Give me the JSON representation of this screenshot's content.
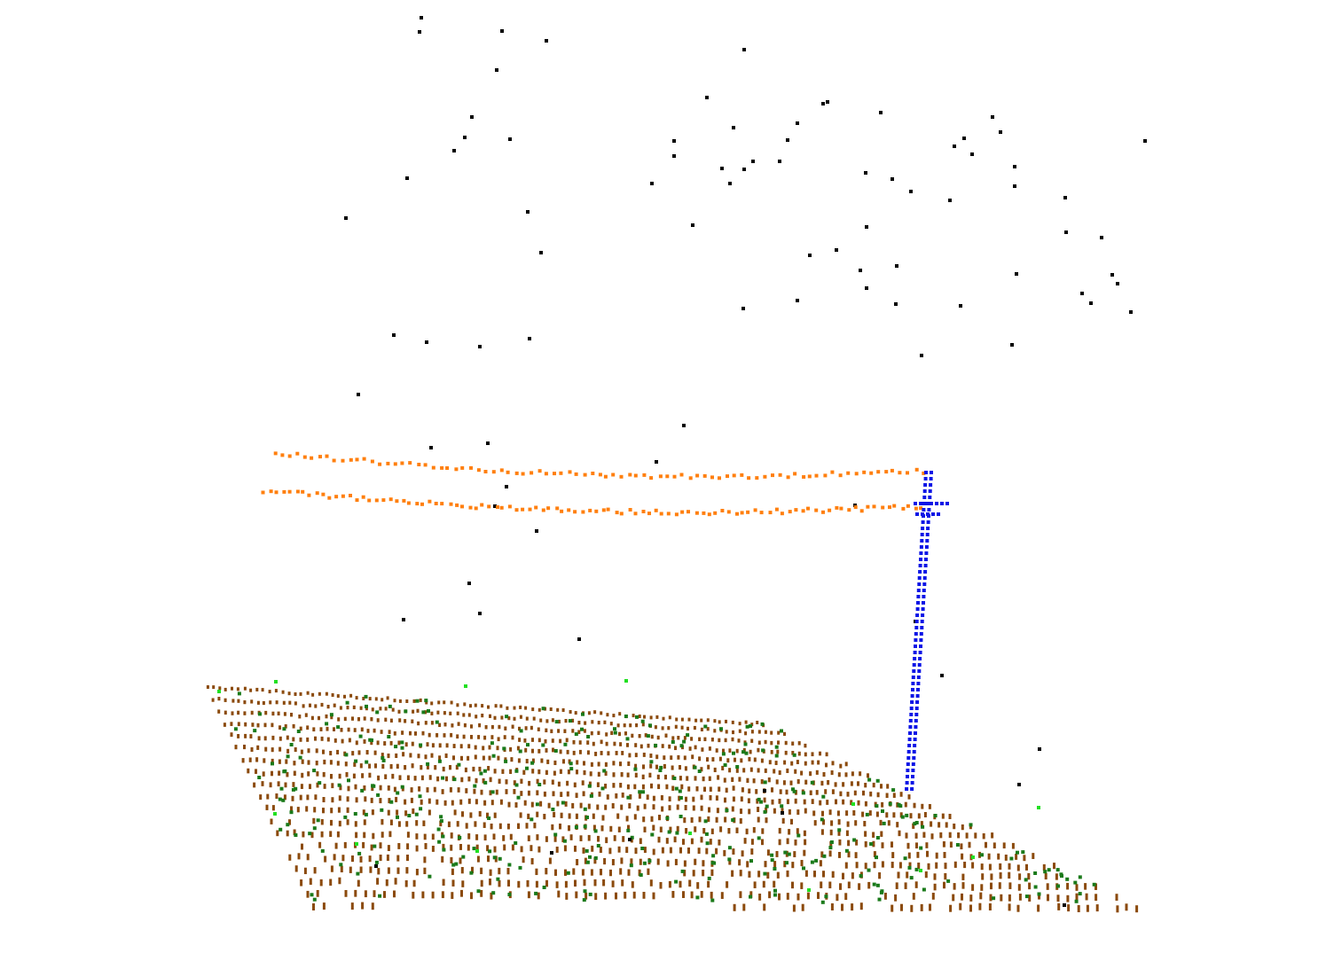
{
  "viewer": {
    "background": "#ffffff"
  },
  "point_classes": [
    {
      "class": "unclassified",
      "color": "#000000"
    },
    {
      "class": "ground",
      "color": "#8b4a0c"
    },
    {
      "class": "low-vegetation",
      "color": "#1a7a1a"
    },
    {
      "class": "high-vegetation",
      "color": "#22e022"
    },
    {
      "class": "wire-conductor",
      "color": "#ff7f0e"
    },
    {
      "class": "transmission-tower",
      "color": "#0a14e6"
    }
  ]
}
